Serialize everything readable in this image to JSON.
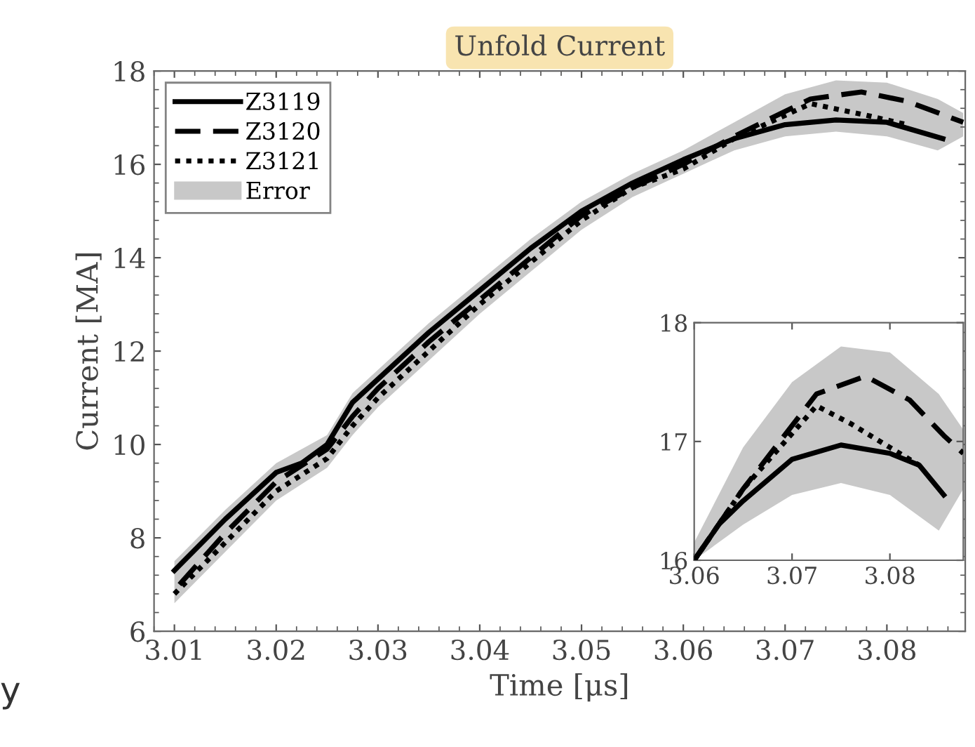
{
  "chart_data": [
    {
      "type": "line",
      "title": "Unfold Current",
      "xlabel": "Time [μs]",
      "ylabel": "Current [MA]",
      "xlim": [
        3.008,
        3.0877
      ],
      "ylim": [
        6,
        18
      ],
      "xticks": [
        3.01,
        3.02,
        3.03,
        3.04,
        3.05,
        3.06,
        3.07,
        3.08
      ],
      "yticks": [
        6,
        8,
        10,
        12,
        14,
        16,
        18
      ],
      "legend": "top left",
      "annotations": [
        "y"
      ],
      "series": [
        {
          "name": "Z3119",
          "color": "#000000",
          "line_style": "solid",
          "x": [
            3.01,
            3.015,
            3.02,
            3.0225,
            3.025,
            3.0275,
            3.03,
            3.035,
            3.04,
            3.045,
            3.05,
            3.055,
            3.06,
            3.065,
            3.07,
            3.075,
            3.08,
            3.0855
          ],
          "values": [
            7.3,
            8.4,
            9.4,
            9.6,
            10.0,
            10.9,
            11.4,
            12.4,
            13.3,
            14.2,
            15.0,
            15.6,
            16.1,
            16.55,
            16.85,
            16.95,
            16.9,
            16.55
          ]
        },
        {
          "name": "Z3120",
          "color": "#000000",
          "line_style": "dashed",
          "x": [
            3.0105,
            3.015,
            3.02,
            3.025,
            3.0275,
            3.03,
            3.035,
            3.04,
            3.045,
            3.05,
            3.055,
            3.06,
            3.065,
            3.0725,
            3.0775,
            3.082,
            3.0875
          ],
          "values": [
            7.0,
            8.1,
            9.2,
            9.9,
            10.6,
            11.2,
            12.2,
            13.1,
            14.0,
            14.9,
            15.5,
            16.0,
            16.6,
            17.4,
            17.55,
            17.35,
            16.9
          ]
        },
        {
          "name": "Z3121",
          "color": "#000000",
          "line_style": "dotted",
          "x": [
            3.01,
            3.015,
            3.02,
            3.025,
            3.0275,
            3.03,
            3.035,
            3.04,
            3.045,
            3.05,
            3.055,
            3.06,
            3.065,
            3.0725,
            3.078,
            3.082
          ],
          "values": [
            6.8,
            7.9,
            9.0,
            9.7,
            10.4,
            11.0,
            12.0,
            13.0,
            13.9,
            14.8,
            15.5,
            15.9,
            16.55,
            17.3,
            17.05,
            16.85
          ]
        },
        {
          "name": "Error",
          "color": "#c8c8c8",
          "x": [
            3.01,
            3.015,
            3.02,
            3.025,
            3.0275,
            3.03,
            3.035,
            3.04,
            3.045,
            3.05,
            3.055,
            3.06,
            3.065,
            3.07,
            3.075,
            3.08,
            3.085,
            3.0875
          ],
          "values": [
            null,
            null,
            null,
            null,
            null,
            null,
            null,
            null,
            null,
            null,
            null,
            null,
            null,
            null,
            null,
            null,
            null,
            null
          ],
          "lower": [
            6.6,
            7.7,
            8.8,
            9.5,
            10.2,
            10.8,
            11.8,
            12.8,
            13.7,
            14.6,
            15.3,
            15.8,
            16.3,
            16.6,
            16.7,
            16.6,
            16.3,
            16.6
          ],
          "upper": [
            7.5,
            8.6,
            9.6,
            10.2,
            11.1,
            11.6,
            12.6,
            13.5,
            14.4,
            15.2,
            15.8,
            16.3,
            16.9,
            17.5,
            17.8,
            17.75,
            17.4,
            17.1
          ]
        }
      ]
    },
    {
      "type": "line",
      "xlim": [
        3.06,
        3.0875
      ],
      "ylim": [
        16,
        18
      ],
      "xticks": [
        3.06,
        3.07,
        3.08
      ],
      "yticks": [
        16,
        17,
        18
      ],
      "series": [
        {
          "color": "#000000",
          "line_style": "solid",
          "x": [
            3.06,
            3.0625,
            3.065,
            3.07,
            3.075,
            3.08,
            3.083,
            3.0855
          ],
          "values": [
            16.0,
            16.3,
            16.5,
            16.85,
            16.97,
            16.9,
            16.8,
            16.55
          ]
        },
        {
          "color": "#000000",
          "line_style": "dashed",
          "x": [
            3.06,
            3.065,
            3.0725,
            3.0775,
            3.082,
            3.0855,
            3.0875
          ],
          "values": [
            16.0,
            16.6,
            17.4,
            17.55,
            17.35,
            17.05,
            16.9
          ]
        },
        {
          "color": "#000000",
          "line_style": "dotted",
          "x": [
            3.06,
            3.065,
            3.0725,
            3.076,
            3.08,
            3.083
          ],
          "values": [
            16.0,
            16.6,
            17.3,
            17.15,
            16.95,
            16.8
          ]
        },
        {
          "color": "#c8c8c8",
          "x": [
            3.06,
            3.065,
            3.07,
            3.075,
            3.08,
            3.085,
            3.0875
          ],
          "values": [
            null,
            null,
            null,
            null,
            null,
            null,
            null
          ],
          "lower": [
            16.0,
            16.3,
            16.55,
            16.65,
            16.55,
            16.25,
            16.6
          ],
          "upper": [
            16.15,
            16.95,
            17.5,
            17.8,
            17.75,
            17.4,
            17.1
          ]
        }
      ]
    }
  ]
}
